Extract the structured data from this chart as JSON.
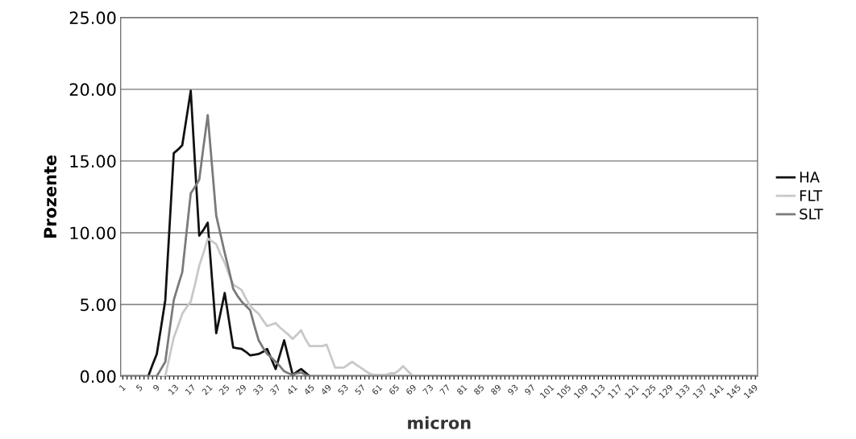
{
  "chart_data": {
    "type": "line",
    "xlabel": "micron",
    "ylabel": "Prozente",
    "categories": [
      "1",
      null,
      null,
      null,
      "5",
      null,
      null,
      null,
      "9",
      null,
      null,
      null,
      "13",
      null,
      null,
      null,
      "17",
      null,
      null,
      null,
      "21",
      null,
      null,
      null,
      "25",
      null,
      null,
      null,
      "29",
      null,
      null,
      null,
      "33",
      null,
      null,
      null,
      "37",
      null,
      null,
      null,
      "41",
      null,
      null,
      null,
      "45",
      null,
      null,
      null,
      "49",
      null,
      null,
      null,
      "53",
      null,
      null,
      null,
      "57",
      null,
      null,
      null,
      "61",
      null,
      null,
      null,
      "65",
      null,
      null,
      null,
      "69",
      null,
      null,
      null,
      "73",
      null,
      null,
      null,
      "77",
      null,
      null,
      null,
      "81",
      null,
      null,
      null,
      "85",
      null,
      null,
      null,
      "89",
      null,
      null,
      null,
      "93",
      null,
      null,
      null,
      "97",
      null,
      null,
      null,
      "101",
      null,
      null,
      null,
      "105",
      null,
      null,
      null,
      "109",
      null,
      null,
      null,
      "113",
      null,
      null,
      null,
      "117",
      null,
      null,
      null,
      "121",
      null,
      null,
      null,
      "125",
      null,
      null,
      null,
      "129",
      null,
      null,
      null,
      "133",
      null,
      null,
      null,
      "137",
      null,
      null,
      null,
      "141",
      null,
      null,
      null,
      "145",
      null,
      null,
      null,
      "149",
      null
    ],
    "series": [
      {
        "name": "HA",
        "color": "#111111",
        "values": [
          0,
          0,
          0,
          0,
          0,
          0,
          0,
          0.8,
          1.55,
          3.4,
          5.3,
          10.4,
          15.55,
          15.8,
          16.1,
          18.0,
          19.9,
          14.8,
          9.8,
          10.2,
          10.7,
          6.8,
          3.0,
          4.4,
          5.8,
          3.9,
          2.0,
          1.95,
          1.9,
          1.7,
          1.45,
          1.5,
          1.55,
          1.7,
          1.9,
          1.2,
          0.5,
          1.5,
          2.5,
          1.3,
          0.1,
          0.3,
          0.5,
          0.25,
          0,
          0,
          0,
          0,
          0,
          0,
          0,
          0,
          0,
          0,
          0,
          0,
          0,
          0,
          0,
          0,
          0,
          0,
          0,
          0,
          0,
          0,
          0,
          0,
          0,
          0,
          0,
          0,
          0,
          0,
          0,
          0,
          0,
          0,
          0,
          0,
          0,
          0,
          0,
          0,
          0,
          0,
          0,
          0,
          0,
          0,
          0,
          0,
          0,
          0,
          0,
          0,
          0,
          0,
          0,
          0,
          0,
          0,
          0,
          0,
          0,
          0,
          0,
          0,
          0,
          0,
          0,
          0,
          0,
          0,
          0,
          0,
          0,
          0,
          0,
          0,
          0,
          0,
          0,
          0,
          0,
          0,
          0,
          0,
          0,
          0,
          0,
          0,
          0,
          0,
          0,
          0,
          0,
          0,
          0,
          0,
          0,
          0,
          0,
          0,
          0,
          0,
          0,
          0,
          0,
          0
        ]
      },
      {
        "name": "FLT",
        "color": "#c8c8c8",
        "values": [
          0,
          0,
          0,
          0,
          0,
          0,
          0,
          0,
          0,
          0,
          0,
          1.35,
          2.7,
          3.5,
          4.35,
          4.8,
          5.2,
          6.4,
          7.7,
          8.6,
          9.6,
          9.4,
          9.2,
          8.5,
          7.9,
          7.1,
          6.4,
          6.2,
          6.0,
          5.4,
          4.9,
          4.6,
          4.35,
          3.9,
          3.5,
          3.6,
          3.7,
          3.4,
          3.15,
          2.9,
          2.6,
          2.9,
          3.2,
          2.6,
          2.1,
          2.1,
          2.1,
          2.1,
          2.2,
          1.4,
          0.6,
          0.6,
          0.6,
          0.8,
          1.0,
          0.8,
          0.6,
          0.4,
          0.2,
          0.1,
          0.1,
          0.1,
          0.1,
          0.2,
          0.2,
          0.4,
          0.7,
          0.4,
          0.1,
          0,
          0,
          0,
          0,
          0,
          0,
          0,
          0,
          0,
          0,
          0,
          0,
          0,
          0,
          0,
          0,
          0,
          0,
          0,
          0,
          0,
          0,
          0,
          0,
          0,
          0,
          0,
          0,
          0,
          0,
          0,
          0,
          0,
          0,
          0,
          0,
          0,
          0,
          0,
          0,
          0,
          0,
          0,
          0,
          0,
          0,
          0,
          0,
          0,
          0,
          0,
          0,
          0,
          0,
          0,
          0,
          0,
          0,
          0,
          0,
          0,
          0,
          0,
          0,
          0,
          0,
          0,
          0,
          0,
          0,
          0,
          0,
          0,
          0,
          0,
          0,
          0,
          0,
          0,
          0,
          0
        ]
      },
      {
        "name": "SLT",
        "color": "#7a7a7a",
        "values": [
          0,
          0,
          0,
          0,
          0,
          0,
          0,
          0,
          0,
          0.5,
          1.0,
          3.2,
          5.3,
          6.3,
          7.25,
          10.0,
          12.75,
          13.2,
          13.7,
          16.0,
          18.2,
          14.7,
          11.2,
          9.9,
          8.6,
          7.4,
          6.1,
          5.6,
          5.2,
          4.9,
          4.6,
          3.5,
          2.5,
          2.0,
          1.55,
          1.3,
          1.0,
          0.7,
          0.35,
          0.2,
          0.1,
          0.2,
          0.25,
          0.1,
          0,
          0,
          0,
          0,
          0,
          0,
          0,
          0,
          0,
          0,
          0,
          0,
          0,
          0,
          0,
          0,
          0,
          0,
          0,
          0,
          0,
          0,
          0,
          0,
          0,
          0,
          0,
          0,
          0,
          0,
          0,
          0,
          0,
          0,
          0,
          0,
          0,
          0,
          0,
          0,
          0,
          0,
          0,
          0,
          0,
          0,
          0,
          0,
          0,
          0,
          0,
          0,
          0,
          0,
          0,
          0,
          0,
          0,
          0,
          0,
          0,
          0,
          0,
          0,
          0,
          0,
          0,
          0,
          0,
          0,
          0,
          0,
          0,
          0,
          0,
          0,
          0,
          0,
          0,
          0,
          0,
          0,
          0,
          0,
          0,
          0,
          0,
          0,
          0,
          0,
          0,
          0,
          0,
          0,
          0,
          0,
          0,
          0,
          0,
          0,
          0,
          0,
          0,
          0,
          0,
          0
        ]
      }
    ],
    "ylim": [
      0,
      25
    ],
    "yticks": [
      {
        "value": 0,
        "label": "0.00"
      },
      {
        "value": 5,
        "label": "5.00"
      },
      {
        "value": 10,
        "label": "10.00"
      },
      {
        "value": 15,
        "label": "15.00"
      },
      {
        "value": 20,
        "label": "20.00"
      },
      {
        "value": 25,
        "label": "25.00"
      }
    ],
    "grid": "y",
    "legend": "right",
    "marker": "none",
    "line_style": "solid"
  }
}
